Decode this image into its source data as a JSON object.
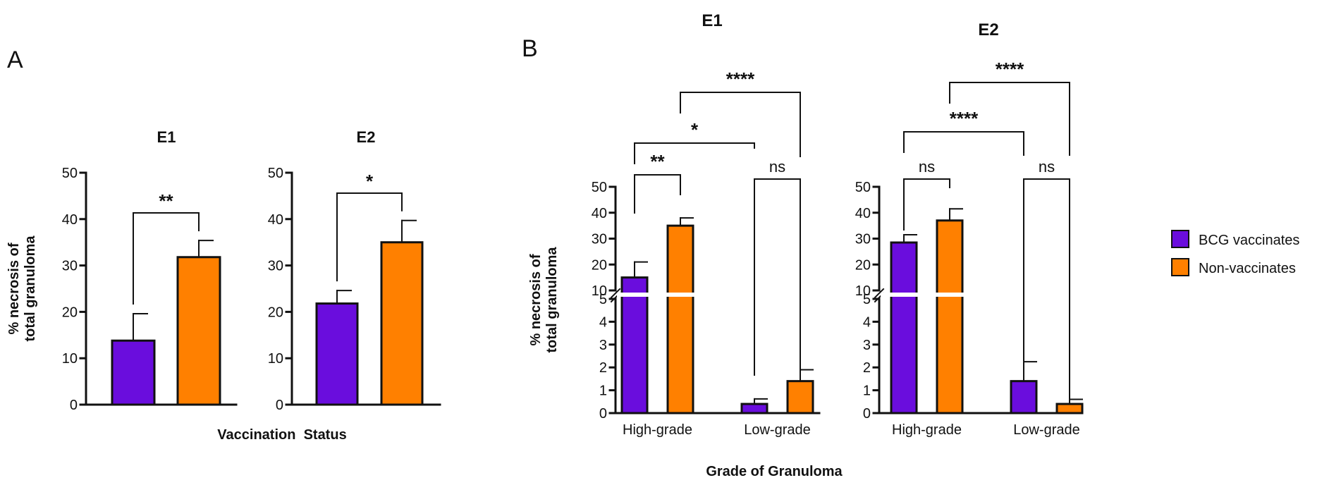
{
  "colors": {
    "bcg": "#6A0DDD",
    "non": "#FF8000",
    "axis": "#111111"
  },
  "panel_a": {
    "label": "A",
    "xlabel": "Vaccination  Status"
  },
  "panel_b": {
    "label": "B",
    "xlabel": "Grade of Granuloma"
  },
  "legend": [
    {
      "name": "BCG vaccinates",
      "color": "#6A0DDD"
    },
    {
      "name": "Non-vaccinates",
      "color": "#FF8000"
    }
  ],
  "chart_data": [
    {
      "type": "bar",
      "id": "A-E1",
      "title": "E1",
      "ylabel": "% necrosis of\ntotal granuloma",
      "ylim": [
        0,
        50
      ],
      "yticks": [
        0,
        10,
        20,
        30,
        40,
        50
      ],
      "categories": [
        "BCG vaccinates",
        "Non-vaccinates"
      ],
      "values": [
        13.8,
        31.8
      ],
      "errors": [
        5.8,
        3.6
      ],
      "significance": [
        {
          "between": [
            0,
            1
          ],
          "label": "**"
        }
      ]
    },
    {
      "type": "bar",
      "id": "A-E2",
      "title": "E2",
      "ylabel": "",
      "ylim": [
        0,
        50
      ],
      "yticks": [
        0,
        10,
        20,
        30,
        40,
        50
      ],
      "categories": [
        "BCG vaccinates",
        "Non-vaccinates"
      ],
      "values": [
        21.8,
        35.0
      ],
      "errors": [
        2.8,
        4.7
      ],
      "significance": [
        {
          "between": [
            0,
            1
          ],
          "label": "*"
        }
      ]
    },
    {
      "type": "bar",
      "id": "B-E1",
      "title": "E1",
      "ylabel": "% necrosis of\ntotal granuloma",
      "broken_axis": {
        "lower": [
          0,
          5
        ],
        "upper": [
          10,
          50
        ]
      },
      "yticks_lower": [
        0,
        1,
        2,
        3,
        4,
        5
      ],
      "yticks_upper": [
        10,
        20,
        30,
        40,
        50
      ],
      "categories": [
        "High-grade",
        "Low-grade"
      ],
      "series": [
        {
          "name": "BCG vaccinates",
          "values": [
            15.0,
            0.4
          ],
          "errors": [
            6.0,
            0.22
          ]
        },
        {
          "name": "Non-vaccinates",
          "values": [
            35.0,
            1.4
          ],
          "errors": [
            3.0,
            0.5
          ]
        }
      ],
      "significance": [
        {
          "between": [
            "High-grade BCG vaccinates",
            "High-grade Non-vaccinates"
          ],
          "label": "**"
        },
        {
          "between": [
            "Low-grade BCG vaccinates",
            "Low-grade Non-vaccinates"
          ],
          "label": "ns"
        },
        {
          "between": [
            "High-grade BCG vaccinates",
            "Low-grade BCG vaccinates"
          ],
          "label": "*"
        },
        {
          "between": [
            "High-grade Non-vaccinates",
            "Low-grade Non-vaccinates"
          ],
          "label": "****"
        }
      ]
    },
    {
      "type": "bar",
      "id": "B-E2",
      "title": "E2",
      "ylabel": "",
      "broken_axis": {
        "lower": [
          0,
          5
        ],
        "upper": [
          10,
          50
        ]
      },
      "yticks_lower": [
        0,
        1,
        2,
        3,
        4,
        5
      ],
      "yticks_upper": [
        10,
        20,
        30,
        40,
        50
      ],
      "categories": [
        "High-grade",
        "Low-grade"
      ],
      "series": [
        {
          "name": "BCG vaccinates",
          "values": [
            28.5,
            1.4
          ],
          "errors": [
            3.0,
            0.85
          ]
        },
        {
          "name": "Non-vaccinates",
          "values": [
            37.0,
            0.4
          ],
          "errors": [
            4.5,
            0.2
          ]
        }
      ],
      "significance": [
        {
          "between": [
            "High-grade BCG vaccinates",
            "High-grade Non-vaccinates"
          ],
          "label": "ns"
        },
        {
          "between": [
            "Low-grade BCG vaccinates",
            "Low-grade Non-vaccinates"
          ],
          "label": "ns"
        },
        {
          "between": [
            "High-grade BCG vaccinates",
            "Low-grade BCG vaccinates"
          ],
          "label": "****"
        },
        {
          "between": [
            "High-grade Non-vaccinates",
            "Low-grade Non-vaccinates"
          ],
          "label": "****"
        }
      ]
    }
  ]
}
